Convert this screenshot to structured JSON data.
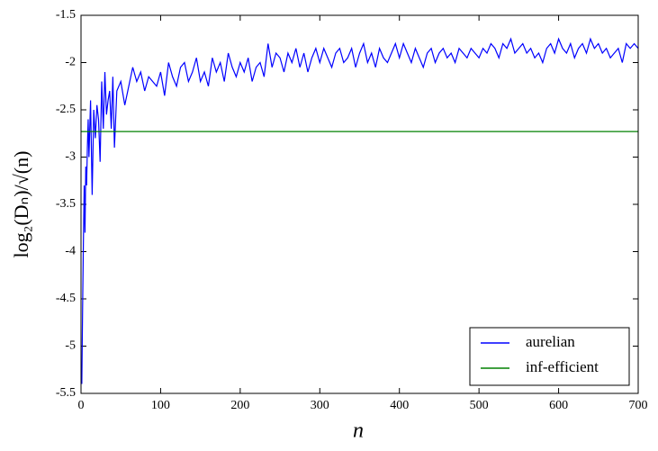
{
  "chart_data": {
    "type": "line",
    "x_label": "n",
    "y_label": "log₂(Dₙ)/√(n)",
    "xlim": [
      0,
      700
    ],
    "xticks": [
      0,
      100,
      200,
      300,
      400,
      500,
      600,
      700
    ],
    "ylim": [
      -5.5,
      -1.5
    ],
    "yticks": [
      -5.5,
      -5.0,
      -4.5,
      -4.0,
      -3.5,
      -3.0,
      -2.5,
      -2.0,
      -1.5
    ],
    "legend": "lower right",
    "series": [
      {
        "name": "aurelian",
        "color": "#0000ff",
        "x": [
          1,
          2,
          3,
          4,
          5,
          6,
          7,
          8,
          9,
          10,
          12,
          14,
          16,
          18,
          20,
          22,
          24,
          26,
          28,
          30,
          32,
          34,
          36,
          38,
          40,
          42,
          45,
          50,
          55,
          60,
          65,
          70,
          75,
          80,
          85,
          90,
          95,
          100,
          105,
          110,
          115,
          120,
          125,
          130,
          135,
          140,
          145,
          150,
          155,
          160,
          165,
          170,
          175,
          180,
          185,
          190,
          195,
          200,
          205,
          210,
          215,
          220,
          225,
          230,
          235,
          240,
          245,
          250,
          255,
          260,
          265,
          270,
          275,
          280,
          285,
          290,
          295,
          300,
          305,
          310,
          315,
          320,
          325,
          330,
          335,
          340,
          345,
          350,
          355,
          360,
          365,
          370,
          375,
          380,
          385,
          390,
          395,
          400,
          405,
          410,
          415,
          420,
          425,
          430,
          435,
          440,
          445,
          450,
          455,
          460,
          465,
          470,
          475,
          480,
          485,
          490,
          495,
          500,
          505,
          510,
          515,
          520,
          525,
          530,
          535,
          540,
          545,
          550,
          555,
          560,
          565,
          570,
          575,
          580,
          585,
          590,
          595,
          600,
          605,
          610,
          615,
          620,
          625,
          630,
          635,
          640,
          645,
          650,
          655,
          660,
          665,
          670,
          675,
          680,
          685,
          690,
          695,
          700
        ],
        "values": [
          -5.4,
          -4.6,
          -3.9,
          -3.3,
          -3.8,
          -3.1,
          -3.3,
          -2.9,
          -2.6,
          -3.0,
          -2.4,
          -3.4,
          -2.5,
          -2.8,
          -2.45,
          -2.6,
          -3.05,
          -2.2,
          -2.7,
          -2.1,
          -2.55,
          -2.4,
          -2.3,
          -2.7,
          -2.15,
          -2.9,
          -2.3,
          -2.2,
          -2.45,
          -2.25,
          -2.05,
          -2.2,
          -2.1,
          -2.3,
          -2.15,
          -2.2,
          -2.25,
          -2.1,
          -2.35,
          -2.0,
          -2.15,
          -2.25,
          -2.05,
          -2.0,
          -2.2,
          -2.1,
          -1.95,
          -2.2,
          -2.1,
          -2.25,
          -1.95,
          -2.1,
          -2.0,
          -2.2,
          -1.9,
          -2.05,
          -2.15,
          -2.0,
          -2.1,
          -1.95,
          -2.2,
          -2.05,
          -2.0,
          -2.15,
          -1.8,
          -2.05,
          -1.9,
          -1.95,
          -2.1,
          -1.9,
          -2.0,
          -1.85,
          -2.05,
          -1.9,
          -2.1,
          -1.95,
          -1.85,
          -2.0,
          -1.85,
          -1.95,
          -2.05,
          -1.9,
          -1.85,
          -2.0,
          -1.95,
          -1.85,
          -2.05,
          -1.9,
          -1.8,
          -2.0,
          -1.9,
          -2.05,
          -1.85,
          -1.95,
          -2.0,
          -1.9,
          -1.8,
          -1.95,
          -1.8,
          -1.9,
          -2.0,
          -1.85,
          -1.95,
          -2.05,
          -1.9,
          -1.85,
          -2.0,
          -1.9,
          -1.85,
          -1.95,
          -1.9,
          -2.0,
          -1.85,
          -1.9,
          -1.95,
          -1.85,
          -1.9,
          -1.95,
          -1.85,
          -1.9,
          -1.8,
          -1.85,
          -1.95,
          -1.8,
          -1.85,
          -1.75,
          -1.9,
          -1.85,
          -1.8,
          -1.9,
          -1.85,
          -1.95,
          -1.9,
          -2.0,
          -1.85,
          -1.8,
          -1.9,
          -1.75,
          -1.85,
          -1.9,
          -1.8,
          -1.95,
          -1.85,
          -1.8,
          -1.9,
          -1.75,
          -1.85,
          -1.8,
          -1.9,
          -1.85,
          -1.95,
          -1.9,
          -1.85,
          -2.0,
          -1.8,
          -1.85,
          -1.8,
          -1.85
        ]
      },
      {
        "name": "inf-efficient",
        "color": "#008000",
        "x": [
          0,
          700
        ],
        "values": [
          -2.73,
          -2.73
        ]
      }
    ]
  }
}
